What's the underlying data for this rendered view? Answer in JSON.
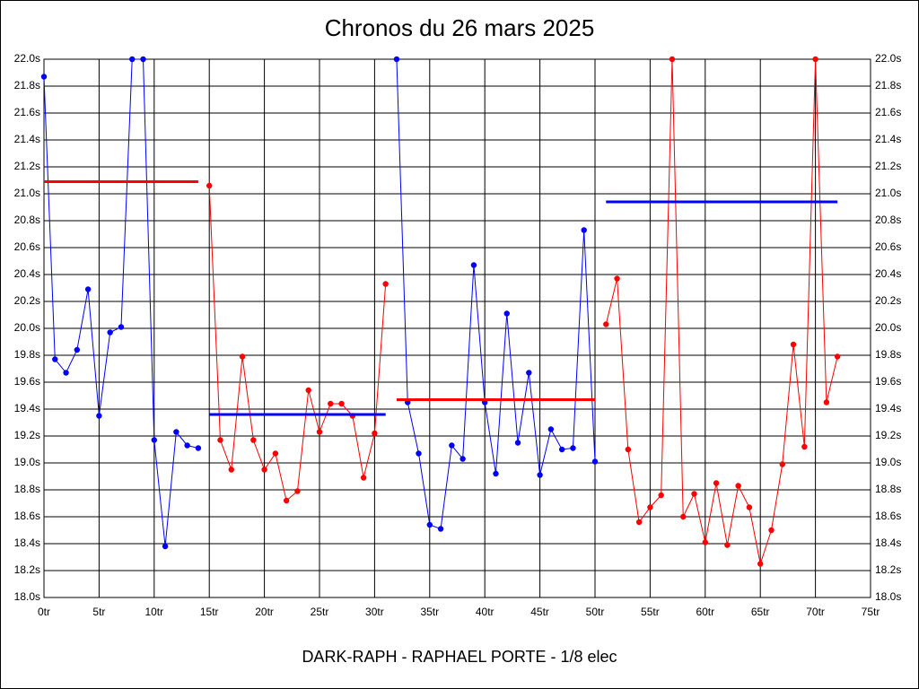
{
  "chart_data": {
    "type": "line",
    "title": "Chronos du 26 mars 2025",
    "xlabel": "DARK-RAPH - RAPHAEL PORTE - 1/8 elec",
    "xlim": [
      0,
      75
    ],
    "ylim": [
      18,
      22
    ],
    "grid": true,
    "xticks": [
      {
        "value": 0,
        "label": "0tr"
      },
      {
        "value": 5,
        "label": "5tr"
      },
      {
        "value": 10,
        "label": "10tr"
      },
      {
        "value": 15,
        "label": "15tr"
      },
      {
        "value": 20,
        "label": "20tr"
      },
      {
        "value": 25,
        "label": "25tr"
      },
      {
        "value": 30,
        "label": "30tr"
      },
      {
        "value": 35,
        "label": "35tr"
      },
      {
        "value": 40,
        "label": "40tr"
      },
      {
        "value": 45,
        "label": "45tr"
      },
      {
        "value": 50,
        "label": "50tr"
      },
      {
        "value": 55,
        "label": "55tr"
      },
      {
        "value": 60,
        "label": "60tr"
      },
      {
        "value": 65,
        "label": "65tr"
      },
      {
        "value": 70,
        "label": "70tr"
      },
      {
        "value": 75,
        "label": "75tr"
      }
    ],
    "yticks": [
      {
        "value": 18.0,
        "label": "18.0s"
      },
      {
        "value": 18.2,
        "label": "18.2s"
      },
      {
        "value": 18.4,
        "label": "18.4s"
      },
      {
        "value": 18.6,
        "label": "18.6s"
      },
      {
        "value": 18.8,
        "label": "18.8s"
      },
      {
        "value": 19.0,
        "label": "19.0s"
      },
      {
        "value": 19.2,
        "label": "19.2s"
      },
      {
        "value": 19.4,
        "label": "19.4s"
      },
      {
        "value": 19.6,
        "label": "19.6s"
      },
      {
        "value": 19.8,
        "label": "19.8s"
      },
      {
        "value": 20.0,
        "label": "20.0s"
      },
      {
        "value": 20.2,
        "label": "20.2s"
      },
      {
        "value": 20.4,
        "label": "20.4s"
      },
      {
        "value": 20.6,
        "label": "20.6s"
      },
      {
        "value": 20.8,
        "label": "20.8s"
      },
      {
        "value": 21.0,
        "label": "21.0s"
      },
      {
        "value": 21.2,
        "label": "21.2s"
      },
      {
        "value": 21.4,
        "label": "21.4s"
      },
      {
        "value": 21.6,
        "label": "21.6s"
      },
      {
        "value": 21.8,
        "label": "21.8s"
      },
      {
        "value": 22.0,
        "label": "22.0s"
      }
    ],
    "series": [
      {
        "color": "#0000ff",
        "x": [
          0,
          1,
          2,
          3,
          4,
          5,
          6,
          7,
          8,
          9,
          10,
          11,
          12,
          13,
          14
        ],
        "values": [
          21.87,
          19.77,
          19.67,
          19.84,
          20.29,
          19.35,
          19.97,
          20.01,
          22.0,
          22.0,
          19.17,
          18.38,
          19.23,
          19.13,
          19.11
        ]
      },
      {
        "color": "#ff0000",
        "x": [
          15,
          16,
          17,
          18,
          19,
          20,
          21,
          22,
          23,
          24,
          25,
          26,
          27,
          28,
          29,
          30,
          31
        ],
        "values": [
          21.06,
          19.17,
          18.95,
          19.79,
          19.17,
          18.95,
          19.07,
          18.72,
          18.79,
          19.54,
          19.23,
          19.44,
          19.44,
          19.35,
          18.89,
          19.22,
          20.33
        ]
      },
      {
        "color": "#0000ff",
        "x": [
          32,
          33,
          34,
          35,
          36,
          37,
          38,
          39,
          40,
          41,
          42,
          43,
          44,
          45,
          46,
          47,
          48,
          49,
          50
        ],
        "values": [
          22.0,
          19.45,
          19.07,
          18.54,
          18.51,
          19.13,
          19.03,
          20.47,
          19.45,
          18.92,
          20.11,
          19.15,
          19.67,
          18.91,
          19.25,
          19.1,
          19.11,
          20.73,
          19.01
        ]
      },
      {
        "color": "#ff0000",
        "x": [
          51,
          52,
          53,
          54,
          55,
          56,
          57,
          58,
          59,
          60,
          61,
          62,
          63,
          64,
          65,
          66,
          67,
          68,
          69,
          70,
          71,
          72
        ],
        "values": [
          20.03,
          20.37,
          19.1,
          18.56,
          18.67,
          18.76,
          22.0,
          18.6,
          18.77,
          18.41,
          18.85,
          18.39,
          18.83,
          18.67,
          18.25,
          18.5,
          18.99,
          19.88,
          19.12,
          22.0,
          19.45,
          19.79
        ]
      }
    ],
    "averages": [
      {
        "color": "#ff0000",
        "x": [
          0,
          14
        ],
        "value": 21.09
      },
      {
        "color": "#0000ff",
        "x": [
          15,
          31
        ],
        "value": 19.36
      },
      {
        "color": "#ff0000",
        "x": [
          32,
          50
        ],
        "value": 19.47
      },
      {
        "color": "#0000ff",
        "x": [
          51,
          72
        ],
        "value": 20.94
      }
    ]
  }
}
